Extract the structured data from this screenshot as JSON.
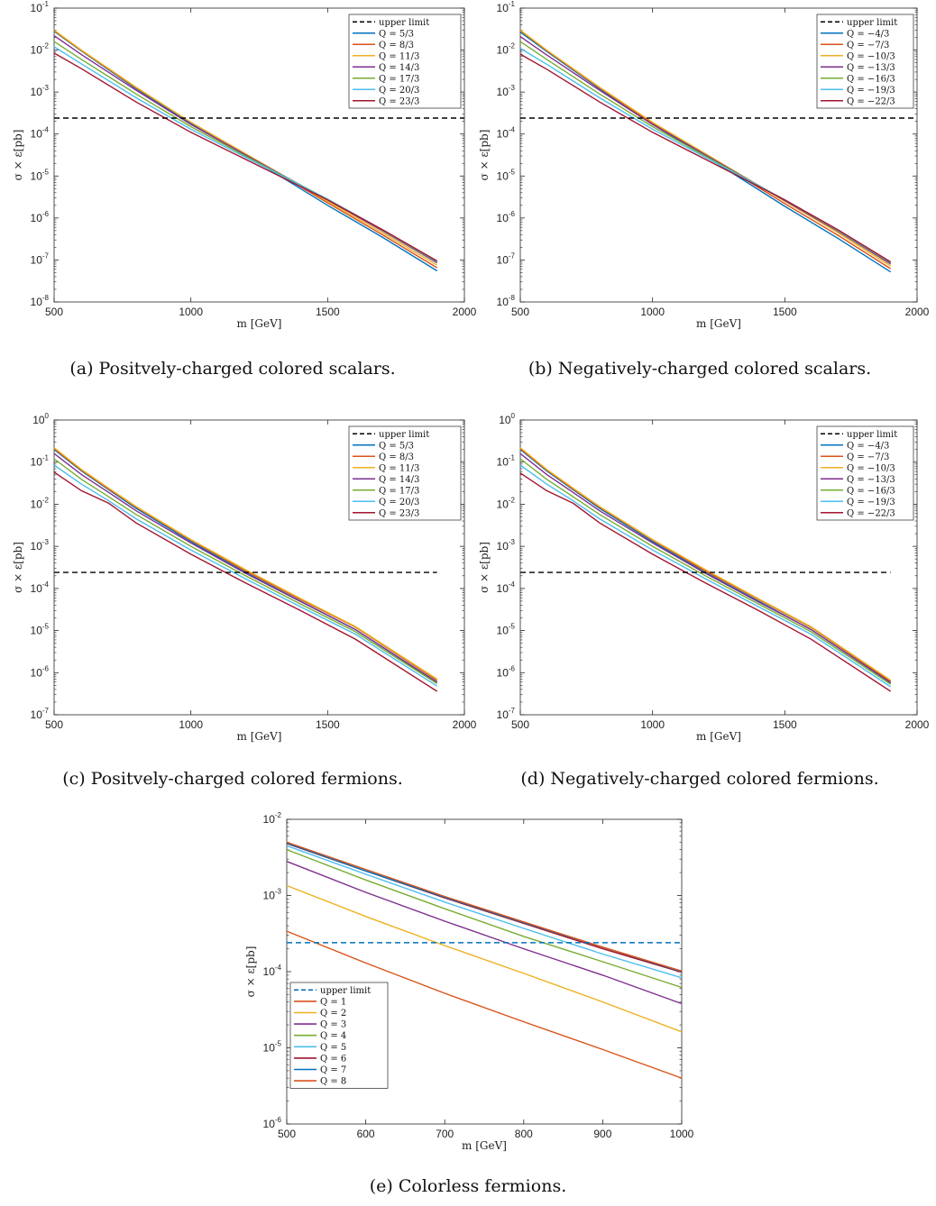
{
  "captions": [
    "(a) Positvely-charged colored scalars.",
    "(b) Negatively-charged colored scalars.",
    "(c) Positvely-charged colored fermions.",
    "(d) Negatively-charged colored fermions.",
    "(e) Colorless fermions."
  ],
  "series_colors": [
    "#0072BD",
    "#D95319",
    "#EDB120",
    "#7E2F8E",
    "#77AC30",
    "#4DBEEE",
    "#A2142F"
  ],
  "upper_limit_value": 0.00024,
  "chart_data": [
    {
      "id": "a",
      "type": "line",
      "xlabel": "m [GeV]",
      "ylabel": "σ × ε[pb]",
      "xlim": [
        500,
        2000
      ],
      "xticks": [
        500,
        1000,
        1500,
        2000
      ],
      "ylim_exp": [
        -8,
        -1
      ],
      "y_scale": "log",
      "legend_position": "top-right",
      "upper_limit": {
        "label": "upper limit",
        "value": 0.00024,
        "x": [
          500,
          2000
        ],
        "color": "#000000"
      },
      "x": [
        500,
        600,
        800,
        1000,
        1200,
        1500,
        1700,
        1900
      ],
      "series": [
        {
          "name": "Q = 5/3",
          "color": "#0072BD",
          "values": [
            0.028,
            0.0095,
            0.0012,
            0.00018,
            3.2e-05,
            2e-06,
            3.5e-07,
            5.5e-08
          ]
        },
        {
          "name": "Q = 8/3",
          "color": "#D95319",
          "values": [
            0.029,
            0.0098,
            0.00125,
            0.00019,
            3.3e-05,
            2.3e-06,
            4e-07,
            6.5e-08
          ]
        },
        {
          "name": "Q = 11/3",
          "color": "#EDB120",
          "values": [
            0.03,
            0.01,
            0.0013,
            0.00019,
            3.4e-05,
            2.5e-06,
            4.5e-07,
            7.5e-08
          ]
        },
        {
          "name": "Q = 14/3",
          "color": "#7E2F8E",
          "values": [
            0.022,
            0.0078,
            0.0011,
            0.00017,
            3.2e-05,
            2.7e-06,
            5e-07,
            8.5e-08
          ]
        },
        {
          "name": "Q = 17/3",
          "color": "#77AC30",
          "values": [
            0.016,
            0.006,
            0.0009,
            0.00015,
            3e-05,
            2.8e-06,
            5.2e-07,
            9e-08
          ]
        },
        {
          "name": "Q = 20/3",
          "color": "#4DBEEE",
          "values": [
            0.012,
            0.0047,
            0.00073,
            0.00013,
            2.8e-05,
            2.8e-06,
            5.3e-07,
            9.2e-08
          ]
        },
        {
          "name": "Q = 23/3",
          "color": "#A2142F",
          "values": [
            0.0085,
            0.0036,
            0.00058,
            0.00011,
            2.5e-05,
            2.7e-06,
            5.3e-07,
            9.5e-08
          ]
        }
      ]
    },
    {
      "id": "b",
      "type": "line",
      "xlabel": "m [GeV]",
      "ylabel": "σ × ε[pb]",
      "xlim": [
        500,
        2000
      ],
      "xticks": [
        500,
        1000,
        1500,
        2000
      ],
      "ylim_exp": [
        -8,
        -1
      ],
      "y_scale": "log",
      "legend_position": "top-right",
      "upper_limit": {
        "label": "upper limit",
        "value": 0.00024,
        "x": [
          500,
          2000
        ],
        "color": "#000000"
      },
      "x": [
        500,
        600,
        800,
        1000,
        1200,
        1500,
        1700,
        1900
      ],
      "series": [
        {
          "name": "Q = −4/3",
          "color": "#0072BD",
          "values": [
            0.027,
            0.0093,
            0.0012,
            0.00017,
            3e-05,
            1.9e-06,
            3.3e-07,
            5.2e-08
          ]
        },
        {
          "name": "Q = −7/3",
          "color": "#D95319",
          "values": [
            0.029,
            0.0098,
            0.00125,
            0.00018,
            3.2e-05,
            2.2e-06,
            3.9e-07,
            6.2e-08
          ]
        },
        {
          "name": "Q = −10/3",
          "color": "#EDB120",
          "values": [
            0.03,
            0.01,
            0.0013,
            0.00019,
            3.4e-05,
            2.5e-06,
            4.5e-07,
            7.2e-08
          ]
        },
        {
          "name": "Q = −13/3",
          "color": "#7E2F8E",
          "values": [
            0.021,
            0.0077,
            0.0011,
            0.00017,
            3.2e-05,
            2.6e-06,
            4.9e-07,
            8e-08
          ]
        },
        {
          "name": "Q = −16/3",
          "color": "#77AC30",
          "values": [
            0.016,
            0.006,
            0.0009,
            0.00015,
            3e-05,
            2.7e-06,
            5.1e-07,
            8.5e-08
          ]
        },
        {
          "name": "Q = −19/3",
          "color": "#4DBEEE",
          "values": [
            0.011,
            0.0046,
            0.00073,
            0.00013,
            2.8e-05,
            2.7e-06,
            5.2e-07,
            8.8e-08
          ]
        },
        {
          "name": "Q = −22/3",
          "color": "#A2142F",
          "values": [
            0.008,
            0.0035,
            0.00058,
            0.00011,
            2.5e-05,
            2.7e-06,
            5.3e-07,
            9e-08
          ]
        }
      ]
    },
    {
      "id": "c",
      "type": "line",
      "xlabel": "m [GeV]",
      "ylabel": "σ × ε[pb]",
      "xlim": [
        500,
        2000
      ],
      "xticks": [
        500,
        1000,
        1500,
        2000
      ],
      "ylim_exp": [
        -7,
        0
      ],
      "y_scale": "log",
      "legend_position": "top-right",
      "upper_limit": {
        "label": "upper limit",
        "value": 0.00024,
        "x": [
          500,
          1900
        ],
        "color": "#000000"
      },
      "x": [
        500,
        600,
        700,
        800,
        1000,
        1200,
        1400,
        1600,
        1900
      ],
      "series": [
        {
          "name": "Q = 5/3",
          "color": "#0072BD",
          "values": [
            0.2,
            0.062,
            0.022,
            0.008,
            0.0013,
            0.00024,
            5e-05,
            1.07e-05,
            5.8e-07
          ]
        },
        {
          "name": "Q = 8/3",
          "color": "#D95319",
          "values": [
            0.21,
            0.065,
            0.023,
            0.0085,
            0.0014,
            0.00026,
            5.5e-05,
            1.22e-05,
            6.6e-07
          ]
        },
        {
          "name": "Q = 11/3",
          "color": "#EDB120",
          "values": [
            0.22,
            0.067,
            0.024,
            0.0088,
            0.00145,
            0.00028,
            5.8e-05,
            1.26e-05,
            7e-07
          ]
        },
        {
          "name": "Q = 14/3",
          "color": "#7E2F8E",
          "values": [
            0.16,
            0.051,
            0.019,
            0.007,
            0.0012,
            0.00023,
            4.9e-05,
            1.07e-05,
            6e-07
          ]
        },
        {
          "name": "Q = 17/3",
          "color": "#77AC30",
          "values": [
            0.12,
            0.039,
            0.015,
            0.0057,
            0.001,
            0.0002,
            4.3e-05,
            9.5e-06,
            5.5e-07
          ]
        },
        {
          "name": "Q = 20/3",
          "color": "#4DBEEE",
          "values": [
            0.085,
            0.03,
            0.012,
            0.0045,
            0.00082,
            0.00017,
            3.7e-05,
            8.3e-06,
            4.8e-07
          ]
        },
        {
          "name": "Q = 23/3",
          "color": "#A2142F",
          "values": [
            0.058,
            0.021,
            0.0105,
            0.0036,
            0.00065,
            0.000135,
            3e-05,
            6.3e-06,
            3.6e-07
          ]
        }
      ]
    },
    {
      "id": "d",
      "type": "line",
      "xlabel": "m [GeV]",
      "ylabel": "σ × ε[pb]",
      "xlim": [
        500,
        2000
      ],
      "xticks": [
        500,
        1000,
        1500,
        2000
      ],
      "ylim_exp": [
        -7,
        0
      ],
      "y_scale": "log",
      "legend_position": "top-right",
      "upper_limit": {
        "label": "upper limit",
        "value": 0.00024,
        "x": [
          500,
          1900
        ],
        "color": "#000000"
      },
      "x": [
        500,
        600,
        700,
        800,
        1000,
        1200,
        1400,
        1600,
        1900
      ],
      "series": [
        {
          "name": "Q = −4/3",
          "color": "#0072BD",
          "values": [
            0.2,
            0.062,
            0.022,
            0.008,
            0.0013,
            0.00024,
            5e-05,
            1.05e-05,
            5.7e-07
          ]
        },
        {
          "name": "Q = −7/3",
          "color": "#D95319",
          "values": [
            0.21,
            0.065,
            0.023,
            0.0085,
            0.0014,
            0.00026,
            5.5e-05,
            1.18e-05,
            6.2e-07
          ]
        },
        {
          "name": "Q = −10/3",
          "color": "#EDB120",
          "values": [
            0.22,
            0.067,
            0.024,
            0.0088,
            0.00145,
            0.00028,
            5.7e-05,
            1.22e-05,
            6.6e-07
          ]
        },
        {
          "name": "Q = −13/3",
          "color": "#7E2F8E",
          "values": [
            0.16,
            0.051,
            0.019,
            0.007,
            0.0012,
            0.00023,
            4.8e-05,
            1.05e-05,
            5.8e-07
          ]
        },
        {
          "name": "Q = −16/3",
          "color": "#77AC30",
          "values": [
            0.12,
            0.039,
            0.015,
            0.0057,
            0.001,
            0.0002,
            4.3e-05,
            9.3e-06,
            5.3e-07
          ]
        },
        {
          "name": "Q = −19/3",
          "color": "#4DBEEE",
          "values": [
            0.085,
            0.03,
            0.012,
            0.0045,
            0.00082,
            0.00017,
            3.7e-05,
            8.1e-06,
            4.6e-07
          ]
        },
        {
          "name": "Q = −22/3",
          "color": "#A2142F",
          "values": [
            0.055,
            0.021,
            0.0105,
            0.0036,
            0.00065,
            0.000135,
            3e-05,
            6.2e-06,
            3.6e-07
          ]
        }
      ]
    },
    {
      "id": "e",
      "type": "line",
      "xlabel": "m [GeV]",
      "ylabel": "σ × ε[pb]",
      "xlim": [
        500,
        1000
      ],
      "xticks": [
        500,
        600,
        700,
        800,
        900,
        1000
      ],
      "ylim_exp": [
        -6,
        -2
      ],
      "y_scale": "log",
      "legend_position": "bottom-left",
      "upper_limit": {
        "label": "upper limit",
        "value": 0.00024,
        "x": [
          500,
          1000
        ],
        "color": "#0072BD"
      },
      "x": [
        500,
        600,
        700,
        800,
        900,
        1000
      ],
      "series": [
        {
          "name": "Q = 1",
          "color": "#D95319",
          "values": [
            0.00034,
            0.00013,
            5.2e-05,
            2.2e-05,
            9.5e-06,
            4e-06
          ]
        },
        {
          "name": "Q = 2",
          "color": "#EDB120",
          "values": [
            0.00135,
            0.00053,
            0.00022,
            9.5e-05,
            4e-05,
            1.62e-05
          ]
        },
        {
          "name": "Q = 3",
          "color": "#7E2F8E",
          "values": [
            0.0028,
            0.0011,
            0.00046,
            0.0002,
            9e-05,
            3.8e-05
          ]
        },
        {
          "name": "Q = 4",
          "color": "#77AC30",
          "values": [
            0.004,
            0.0016,
            0.00067,
            0.00029,
            0.000135,
            6.2e-05
          ]
        },
        {
          "name": "Q = 5",
          "color": "#4DBEEE",
          "values": [
            0.0045,
            0.0019,
            0.00082,
            0.00037,
            0.00017,
            8.3e-05
          ]
        },
        {
          "name": "Q = 6",
          "color": "#A2142F",
          "values": [
            0.0048,
            0.0021,
            0.00093,
            0.00043,
            0.0002,
            9.8e-05
          ]
        },
        {
          "name": "Q = 7",
          "color": "#0072BD",
          "values": [
            0.0049,
            0.0021,
            0.00095,
            0.00044,
            0.00021,
            0.0001
          ]
        },
        {
          "name": "Q = 8",
          "color": "#D95319",
          "values": [
            0.005,
            0.0022,
            0.00097,
            0.00045,
            0.00021,
            0.000102
          ]
        }
      ]
    }
  ]
}
